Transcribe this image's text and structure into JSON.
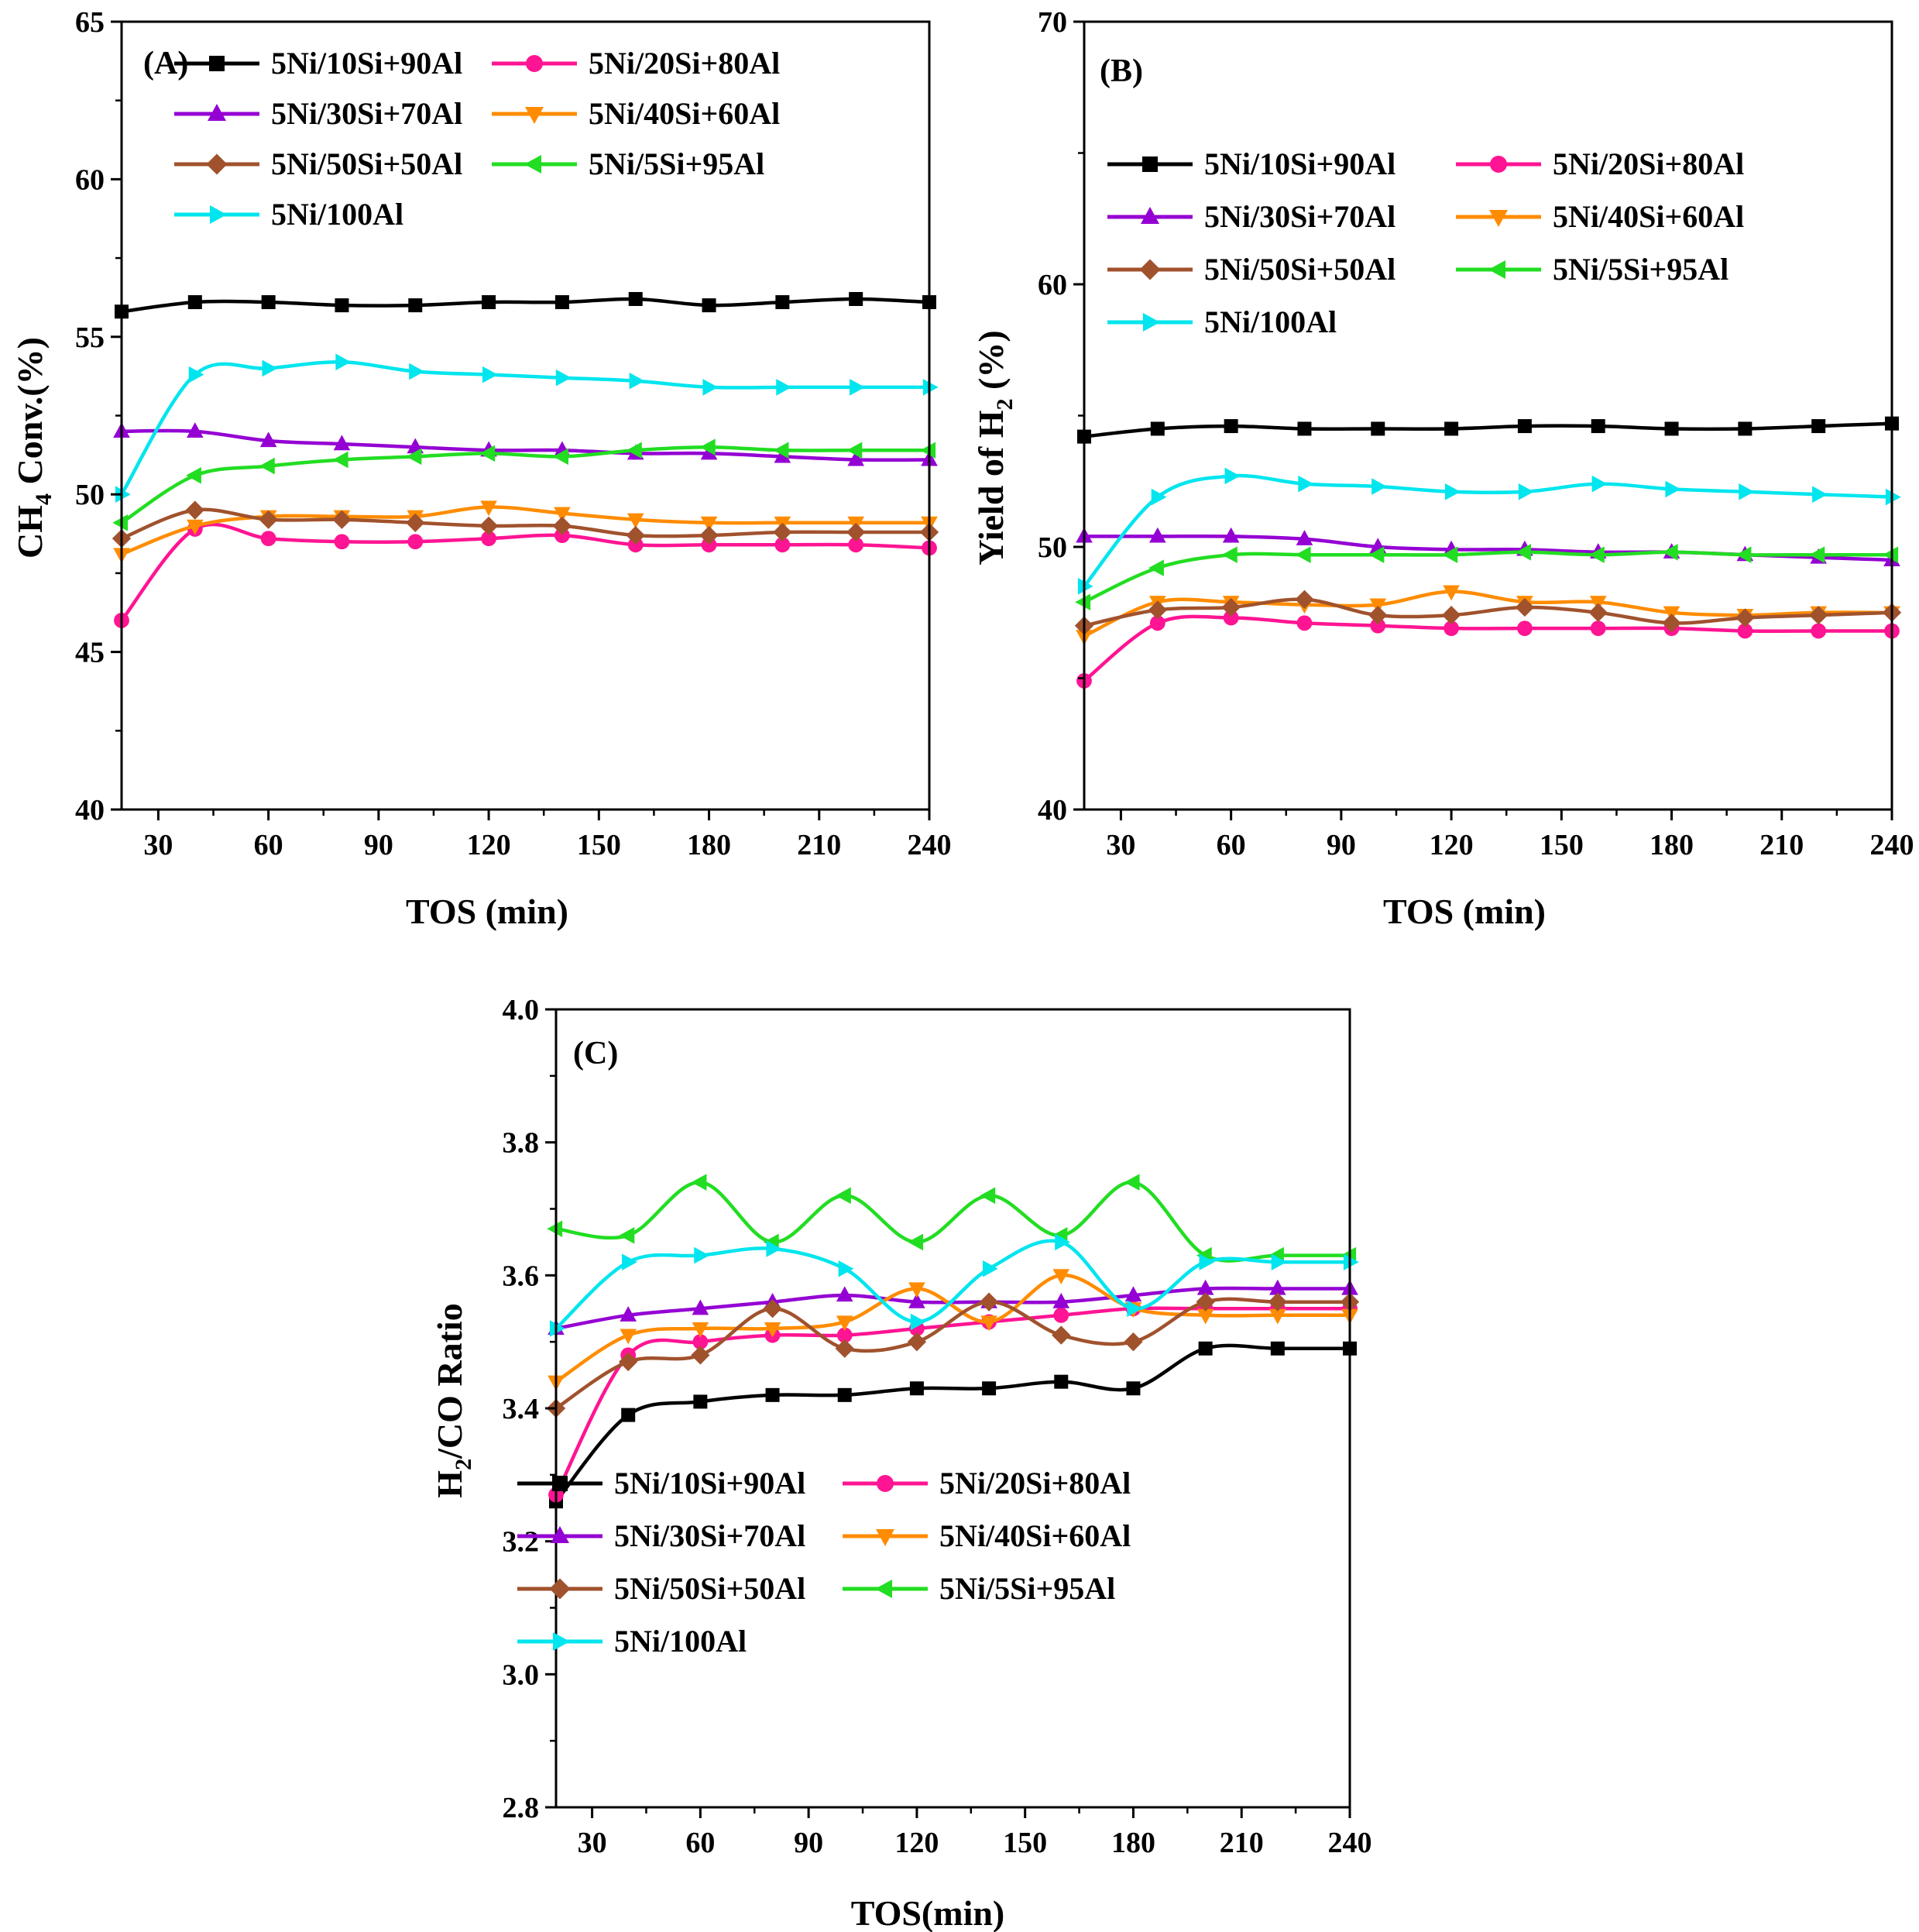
{
  "chart_data": [
    {
      "id": "A",
      "type": "line",
      "panel_label": "(A)",
      "xlabel": "TOS (min)",
      "ylabel_parts": [
        "CH",
        "4",
        " Conv.(%)"
      ],
      "xlim": [
        20,
        240
      ],
      "ylim": [
        40,
        65
      ],
      "xticks": [
        30,
        60,
        90,
        120,
        150,
        180,
        210,
        240
      ],
      "yticks": [
        40,
        45,
        50,
        55,
        60,
        65
      ],
      "x": [
        20,
        40,
        60,
        80,
        100,
        120,
        140,
        160,
        180,
        200,
        220,
        240
      ],
      "legend_position": "top",
      "series": [
        {
          "name": "5Ni/10Si+90Al",
          "color": "#000000",
          "marker": "square",
          "values": [
            55.8,
            56.1,
            56.1,
            56.0,
            56.0,
            56.1,
            56.1,
            56.2,
            56.0,
            56.1,
            56.2,
            56.1
          ]
        },
        {
          "name": "5Ni/20Si+80Al",
          "color": "#ff1493",
          "marker": "circle",
          "values": [
            46.0,
            48.9,
            48.6,
            48.5,
            48.5,
            48.6,
            48.7,
            48.4,
            48.4,
            48.4,
            48.4,
            48.3
          ]
        },
        {
          "name": "5Ni/30Si+70Al",
          "color": "#9400d3",
          "marker": "triangle-up",
          "values": [
            52.0,
            52.0,
            51.7,
            51.6,
            51.5,
            51.4,
            51.4,
            51.3,
            51.3,
            51.2,
            51.1,
            51.1
          ]
        },
        {
          "name": "5Ni/40Si+60Al",
          "color": "#ff8c00",
          "marker": "triangle-down",
          "values": [
            48.1,
            49.0,
            49.3,
            49.3,
            49.3,
            49.6,
            49.4,
            49.2,
            49.1,
            49.1,
            49.1,
            49.1
          ]
        },
        {
          "name": "5Ni/50Si+50Al",
          "color": "#a0522d",
          "marker": "diamond",
          "values": [
            48.6,
            49.5,
            49.2,
            49.2,
            49.1,
            49.0,
            49.0,
            48.7,
            48.7,
            48.8,
            48.8,
            48.8
          ]
        },
        {
          "name": "5Ni/5Si+95Al",
          "color": "#22dd22",
          "marker": "triangle-left",
          "values": [
            49.1,
            50.6,
            50.9,
            51.1,
            51.2,
            51.3,
            51.2,
            51.4,
            51.5,
            51.4,
            51.4,
            51.4
          ]
        },
        {
          "name": "5Ni/100Al",
          "color": "#00e5ee",
          "marker": "triangle-right",
          "values": [
            50.0,
            53.8,
            54.0,
            54.2,
            53.9,
            53.8,
            53.7,
            53.6,
            53.4,
            53.4,
            53.4,
            53.4
          ]
        }
      ]
    },
    {
      "id": "B",
      "type": "line",
      "panel_label": "(B)",
      "xlabel": "TOS (min)",
      "ylabel_parts": [
        "Yield of H",
        "2",
        " (%)"
      ],
      "xlim": [
        20,
        240
      ],
      "ylim": [
        40,
        70
      ],
      "xticks": [
        30,
        60,
        90,
        120,
        150,
        180,
        210,
        240
      ],
      "yticks": [
        40,
        50,
        60,
        70
      ],
      "x": [
        20,
        40,
        60,
        80,
        100,
        120,
        140,
        160,
        180,
        200,
        220,
        240
      ],
      "legend_position": "top",
      "series": [
        {
          "name": "5Ni/10Si+90Al",
          "color": "#000000",
          "marker": "square",
          "values": [
            54.2,
            54.5,
            54.6,
            54.5,
            54.5,
            54.5,
            54.6,
            54.6,
            54.5,
            54.5,
            54.6,
            54.7
          ]
        },
        {
          "name": "5Ni/20Si+80Al",
          "color": "#ff1493",
          "marker": "circle",
          "values": [
            44.9,
            47.1,
            47.3,
            47.1,
            47.0,
            46.9,
            46.9,
            46.9,
            46.9,
            46.8,
            46.8,
            46.8
          ]
        },
        {
          "name": "5Ni/30Si+70Al",
          "color": "#9400d3",
          "marker": "triangle-up",
          "values": [
            50.4,
            50.4,
            50.4,
            50.3,
            50.0,
            49.9,
            49.9,
            49.8,
            49.8,
            49.7,
            49.6,
            49.5
          ]
        },
        {
          "name": "5Ni/40Si+60Al",
          "color": "#ff8c00",
          "marker": "triangle-down",
          "values": [
            46.6,
            47.9,
            47.9,
            47.8,
            47.8,
            48.3,
            47.9,
            47.9,
            47.5,
            47.4,
            47.5,
            47.5
          ]
        },
        {
          "name": "5Ni/50Si+50Al",
          "color": "#a0522d",
          "marker": "diamond",
          "values": [
            47.0,
            47.6,
            47.7,
            48.0,
            47.4,
            47.4,
            47.7,
            47.5,
            47.1,
            47.3,
            47.4,
            47.5
          ]
        },
        {
          "name": "5Ni/5Si+95Al",
          "color": "#22dd22",
          "marker": "triangle-left",
          "values": [
            47.9,
            49.2,
            49.7,
            49.7,
            49.7,
            49.7,
            49.8,
            49.7,
            49.8,
            49.7,
            49.7,
            49.7
          ]
        },
        {
          "name": "5Ni/100Al",
          "color": "#00e5ee",
          "marker": "triangle-right",
          "values": [
            48.5,
            51.9,
            52.7,
            52.4,
            52.3,
            52.1,
            52.1,
            52.4,
            52.2,
            52.1,
            52.0,
            51.9
          ]
        }
      ]
    },
    {
      "id": "C",
      "type": "line",
      "panel_label": "(C)",
      "xlabel": "TOS(min)",
      "ylabel_parts": [
        "H",
        "2",
        "/CO Ratio"
      ],
      "xlim": [
        20,
        240
      ],
      "ylim": [
        2.8,
        4.0
      ],
      "xticks": [
        30,
        60,
        90,
        120,
        150,
        180,
        210,
        240
      ],
      "yticks": [
        "2.8",
        "3.0",
        "3.2",
        "3.4",
        "3.6",
        "3.8",
        "4.0"
      ],
      "x": [
        20,
        40,
        60,
        80,
        100,
        120,
        140,
        160,
        180,
        200,
        220,
        240
      ],
      "legend_position": "bottom",
      "series": [
        {
          "name": "5Ni/10Si+90Al",
          "color": "#000000",
          "marker": "square",
          "values": [
            3.26,
            3.39,
            3.41,
            3.42,
            3.42,
            3.43,
            3.43,
            3.44,
            3.43,
            3.49,
            3.49,
            3.49
          ]
        },
        {
          "name": "5Ni/20Si+80Al",
          "color": "#ff1493",
          "marker": "circle",
          "values": [
            3.27,
            3.48,
            3.5,
            3.51,
            3.51,
            3.52,
            3.53,
            3.54,
            3.55,
            3.55,
            3.55,
            3.55
          ]
        },
        {
          "name": "5Ni/30Si+70Al",
          "color": "#9400d3",
          "marker": "triangle-up",
          "values": [
            3.52,
            3.54,
            3.55,
            3.56,
            3.57,
            3.56,
            3.56,
            3.56,
            3.57,
            3.58,
            3.58,
            3.58
          ]
        },
        {
          "name": "5Ni/40Si+60Al",
          "color": "#ff8c00",
          "marker": "triangle-down",
          "values": [
            3.44,
            3.51,
            3.52,
            3.52,
            3.53,
            3.58,
            3.53,
            3.6,
            3.55,
            3.54,
            3.54,
            3.54
          ]
        },
        {
          "name": "5Ni/50Si+50Al",
          "color": "#a0522d",
          "marker": "diamond",
          "values": [
            3.4,
            3.47,
            3.48,
            3.55,
            3.49,
            3.5,
            3.56,
            3.51,
            3.5,
            3.56,
            3.56,
            3.56
          ]
        },
        {
          "name": "5Ni/5Si+95Al",
          "color": "#22dd22",
          "marker": "triangle-left",
          "values": [
            3.67,
            3.66,
            3.74,
            3.65,
            3.72,
            3.65,
            3.72,
            3.66,
            3.74,
            3.63,
            3.63,
            3.63
          ]
        },
        {
          "name": "5Ni/100Al",
          "color": "#00e5ee",
          "marker": "triangle-right",
          "values": [
            3.52,
            3.62,
            3.63,
            3.64,
            3.61,
            3.53,
            3.61,
            3.65,
            3.55,
            3.62,
            3.62,
            3.62
          ]
        }
      ]
    }
  ]
}
